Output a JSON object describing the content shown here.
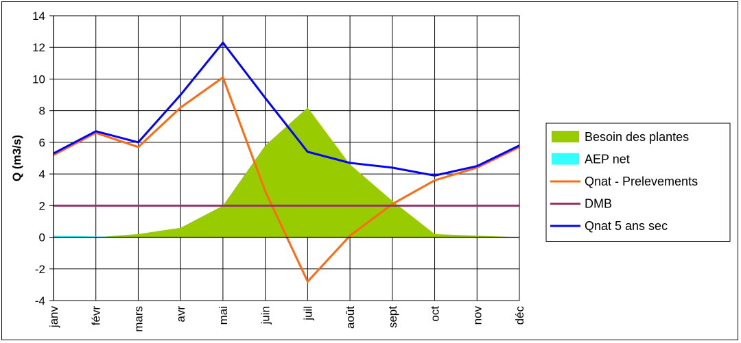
{
  "chart_data": {
    "type": "line",
    "ylabel": "Q (m3/s)",
    "xlabel": "",
    "title": "",
    "ylim": [
      -4,
      14
    ],
    "yticks": [
      -4,
      -2,
      0,
      2,
      4,
      6,
      8,
      10,
      12,
      14
    ],
    "grid": true,
    "legend_position": "right",
    "categories": [
      "janv",
      "févr",
      "mars",
      "avr",
      "mai",
      "juin",
      "juil",
      "août",
      "sept",
      "oct",
      "nov",
      "déc"
    ],
    "series": [
      {
        "name": "Besoin des plantes",
        "kind": "area",
        "color": "#99cc00",
        "values": [
          0,
          0,
          0.2,
          0.6,
          2.0,
          5.8,
          8.2,
          4.6,
          2.3,
          0.2,
          0.1,
          0
        ]
      },
      {
        "name": "AEP net",
        "kind": "area",
        "color": "#33ffff",
        "values": [
          0.1,
          0.05,
          0,
          0,
          0,
          0,
          0,
          0,
          0,
          0,
          0,
          0
        ]
      },
      {
        "name": "Qnat - Prelevements",
        "kind": "line",
        "color": "#ff6a13",
        "values": [
          5.2,
          6.6,
          5.7,
          8.2,
          10.1,
          2.9,
          -2.8,
          0.1,
          2.1,
          3.6,
          4.4,
          5.7
        ]
      },
      {
        "name": "DMB",
        "kind": "line",
        "color": "#993366",
        "values": [
          2,
          2,
          2,
          2,
          2,
          2,
          2,
          2,
          2,
          2,
          2,
          2
        ]
      },
      {
        "name": "Qnat 5 ans sec",
        "kind": "line",
        "color": "#0000ff",
        "values": [
          5.3,
          6.7,
          6.0,
          9.0,
          12.3,
          8.8,
          5.4,
          4.7,
          4.4,
          3.9,
          4.5,
          5.8
        ]
      }
    ]
  }
}
